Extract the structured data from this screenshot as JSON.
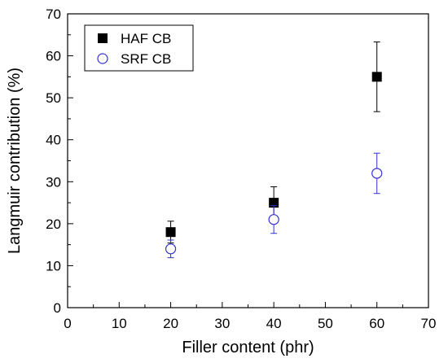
{
  "chart_data": {
    "type": "scatter",
    "xlabel": "Filler content (phr)",
    "ylabel": "Langmuir contribution (%)",
    "xlim": [
      0,
      70
    ],
    "ylim": [
      0,
      70
    ],
    "xticks": [
      "0",
      "10",
      "20",
      "30",
      "40",
      "50",
      "60",
      "70"
    ],
    "yticks": [
      "0",
      "10",
      "20",
      "30",
      "40",
      "50",
      "60",
      "70"
    ],
    "grid": false,
    "legend_position": "top-left",
    "series": [
      {
        "name": "HAF CB",
        "marker": "filled-square",
        "color": "#000000",
        "points": [
          {
            "x": 20,
            "y": 18,
            "err": 2.6
          },
          {
            "x": 40,
            "y": 25,
            "err": 3.8
          },
          {
            "x": 60,
            "y": 55,
            "err": 8.3
          }
        ]
      },
      {
        "name": "SRF CB",
        "marker": "open-circle",
        "color": "#3333cc",
        "points": [
          {
            "x": 20,
            "y": 14,
            "err": 2.1
          },
          {
            "x": 40,
            "y": 21,
            "err": 3.3
          },
          {
            "x": 60,
            "y": 32,
            "err": 4.8
          }
        ]
      }
    ]
  }
}
